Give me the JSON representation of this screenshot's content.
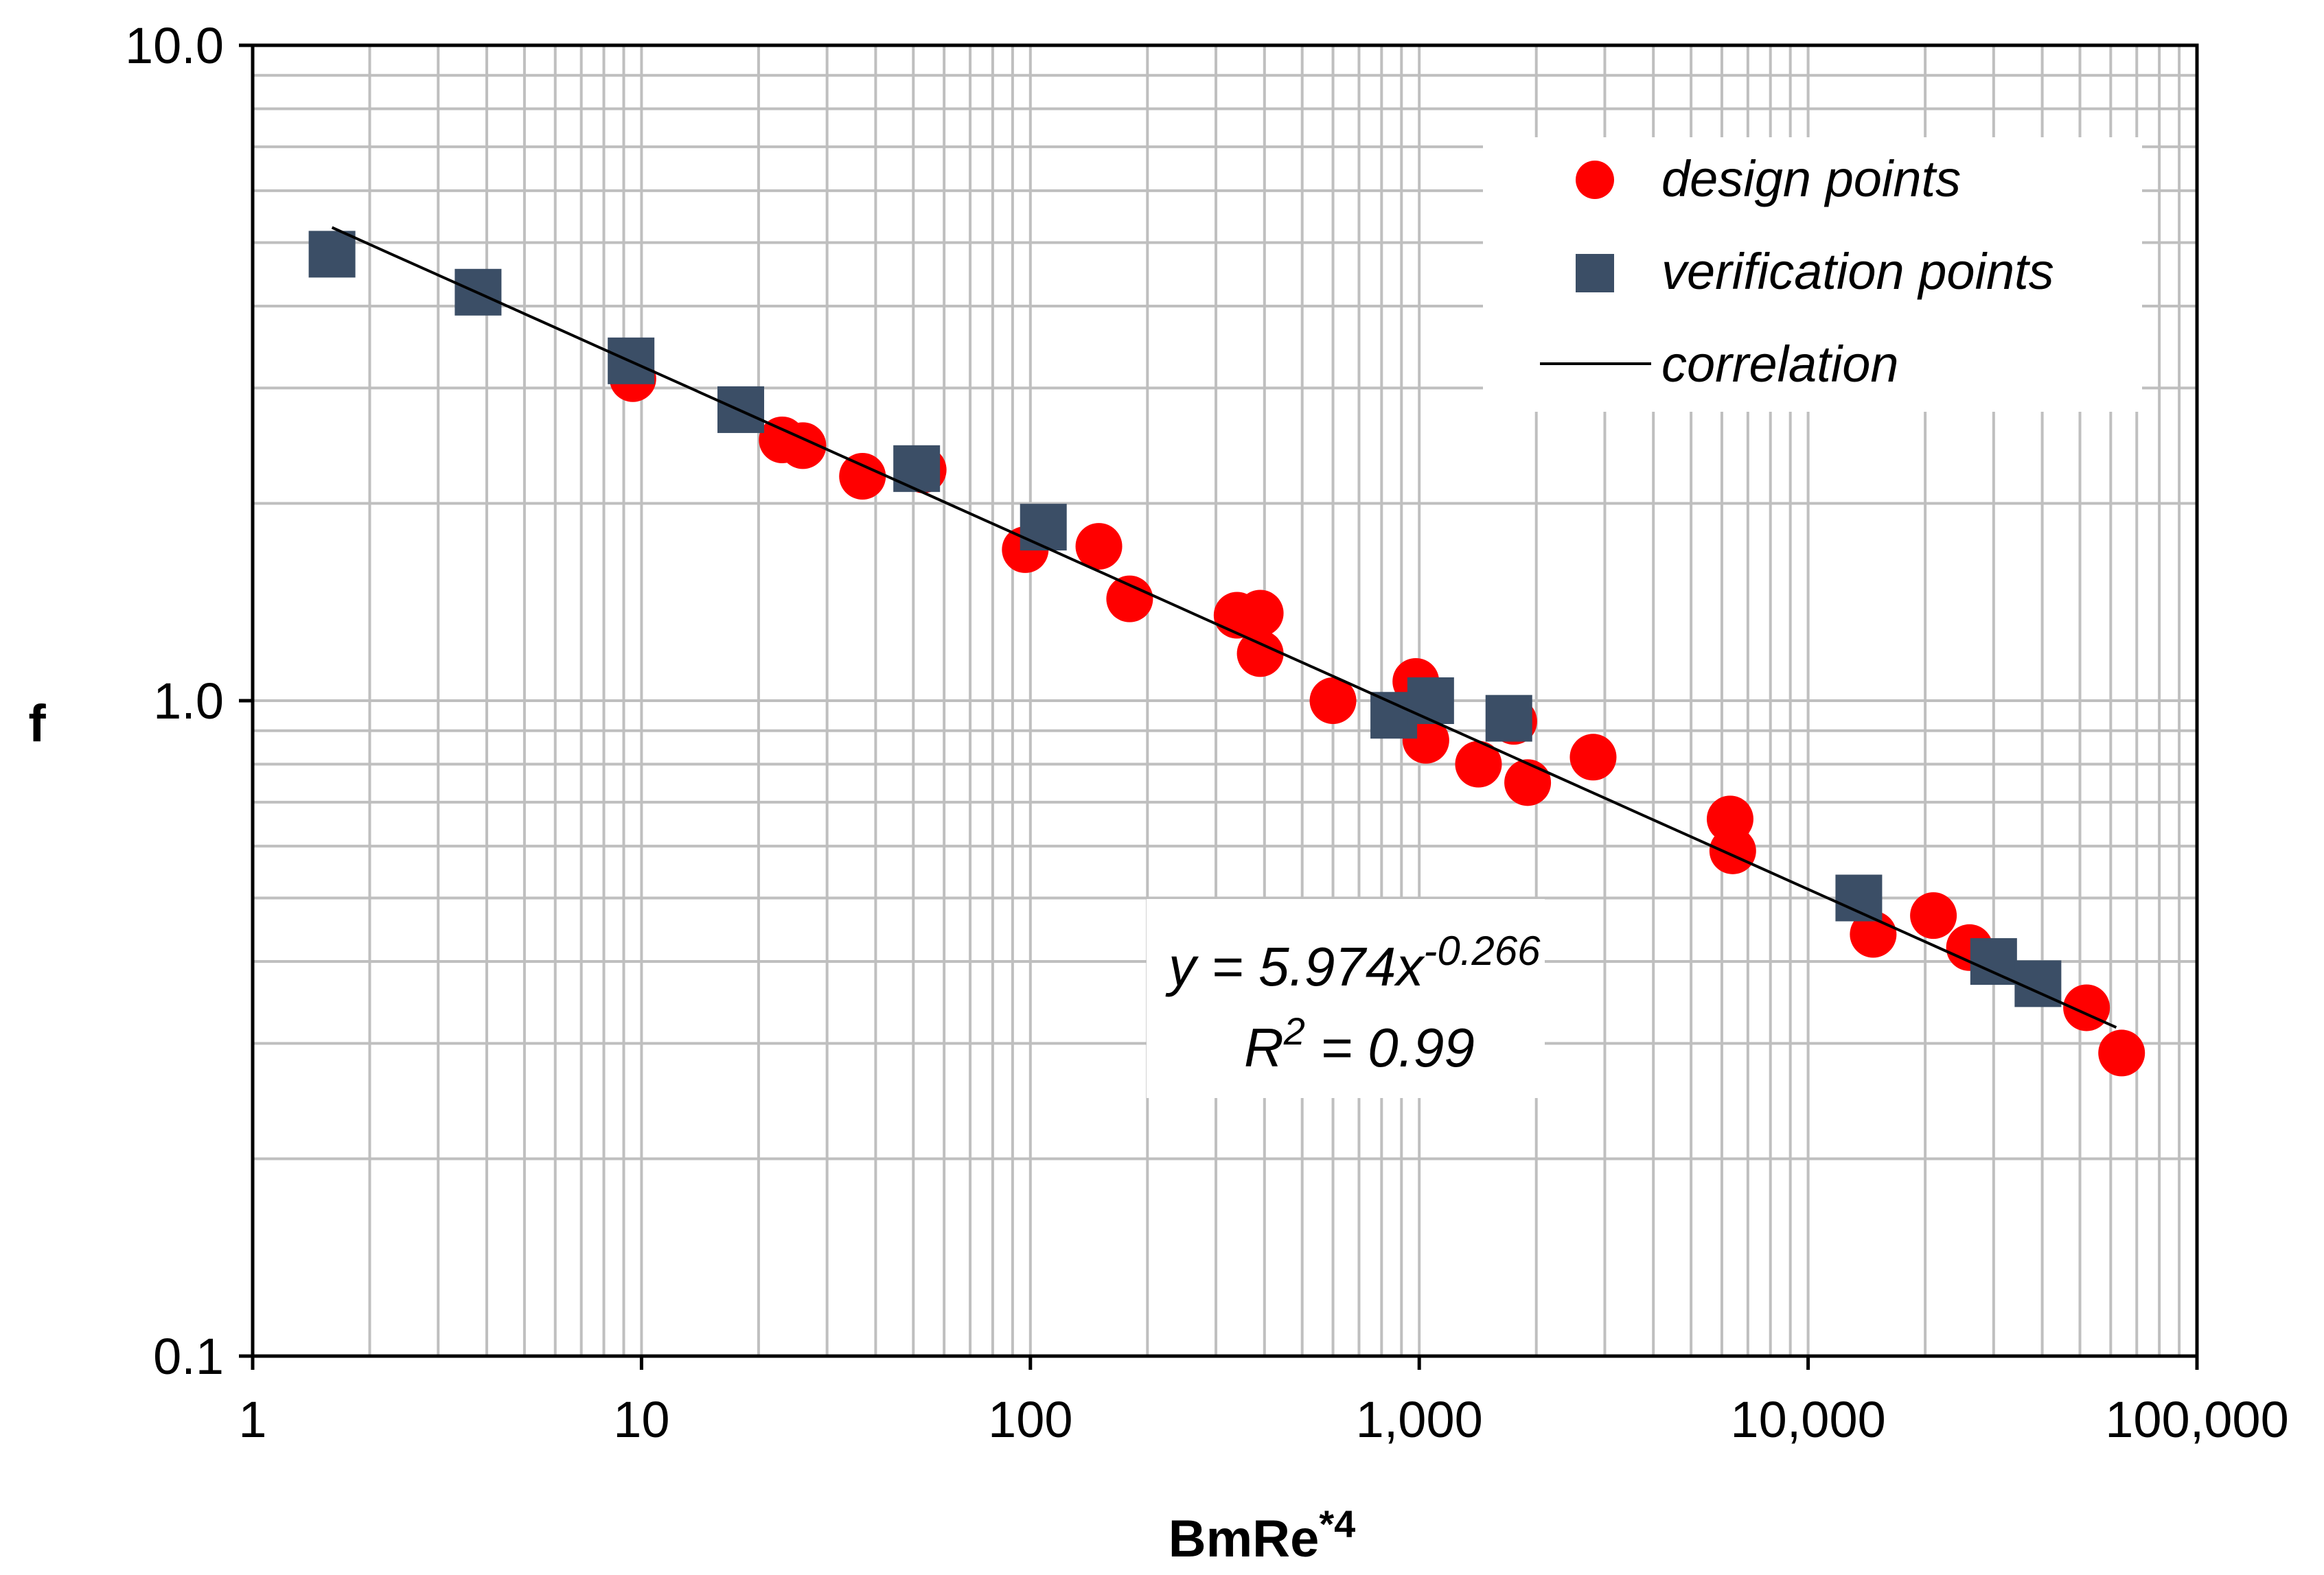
{
  "chart_data": {
    "type": "scatter",
    "title": "",
    "xlabel": "BmRe",
    "xlabel_sup": "*4",
    "ylabel": "f",
    "x_scale": "log",
    "y_scale": "log",
    "xlim": [
      1,
      100000
    ],
    "ylim": [
      0.1,
      10
    ],
    "x_ticks": [
      1,
      10,
      100,
      1000,
      10000,
      100000
    ],
    "x_tick_labels": [
      "1",
      "10",
      "100",
      "1,000",
      "10,000",
      "100,000"
    ],
    "y_ticks": [
      0.1,
      1,
      10
    ],
    "y_tick_labels": [
      "0.1",
      "1.0",
      "10.0"
    ],
    "grid": true,
    "legend_position": "top-right",
    "series": [
      {
        "name": "design points",
        "marker": "circle",
        "color": "#ff0000",
        "points": [
          [
            9.5,
            3.1
          ],
          [
            23,
            2.5
          ],
          [
            26,
            2.45
          ],
          [
            37,
            2.2
          ],
          [
            53,
            2.25
          ],
          [
            97,
            1.7
          ],
          [
            150,
            1.72
          ],
          [
            180,
            1.43
          ],
          [
            340,
            1.35
          ],
          [
            390,
            1.36
          ],
          [
            390,
            1.18
          ],
          [
            600,
            1.0
          ],
          [
            980,
            1.07
          ],
          [
            1040,
            0.87
          ],
          [
            1420,
            0.8
          ],
          [
            1750,
            0.93
          ],
          [
            1900,
            0.75
          ],
          [
            2800,
            0.82
          ],
          [
            6300,
            0.66
          ],
          [
            6400,
            0.59
          ],
          [
            14700,
            0.44
          ],
          [
            21000,
            0.47
          ],
          [
            26000,
            0.42
          ],
          [
            52000,
            0.34
          ],
          [
            64000,
            0.29
          ]
        ]
      },
      {
        "name": "verification points",
        "marker": "square",
        "color": "#3b4e66",
        "points": [
          [
            1.6,
            4.8
          ],
          [
            3.8,
            4.2
          ],
          [
            9.4,
            3.3
          ],
          [
            18,
            2.78
          ],
          [
            51,
            2.26
          ],
          [
            108,
            1.84
          ],
          [
            860,
            0.95
          ],
          [
            1070,
            1.0
          ],
          [
            1700,
            0.94
          ],
          [
            13500,
            0.5
          ],
          [
            30000,
            0.4
          ],
          [
            39000,
            0.37
          ]
        ]
      },
      {
        "name": "correlation",
        "type": "line",
        "color": "#000000",
        "equation": {
          "coef": 5.974,
          "exponent": -0.266
        },
        "x_range": [
          1.6,
          62000
        ]
      }
    ],
    "annotation": {
      "eq_main": "y = 5.974x",
      "eq_exp": "-0.266",
      "r2_main": "R",
      "r2_sup": "2",
      "r2_rest": " = 0.99"
    }
  }
}
